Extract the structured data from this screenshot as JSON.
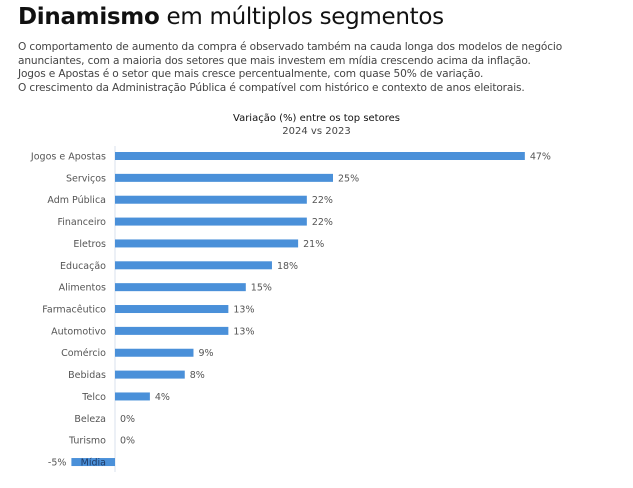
{
  "header": {
    "title_bold": "Dinamismo",
    "title_rest": " em múltiplos segmentos"
  },
  "description": [
    "O comportamento de aumento da compra é observado também na cauda longa dos modelos de negócio",
    "anunciantes, com a maioria dos setores que mais investem em mídia crescendo acima da inflação.",
    "Jogos e Apostas é o setor que mais cresce percentualmente, com quase 50% de variação.",
    "O crescimento da Administração Pública é compatível com histórico e contexto de anos eleitorais."
  ],
  "chart_data": {
    "type": "bar",
    "orientation": "horizontal",
    "title": "Variação (%) entre os top setores",
    "subtitle": "2024 vs 2023",
    "categories": [
      "Jogos e Apostas",
      "Serviços",
      "Adm Pública",
      "Financeiro",
      "Eletros",
      "Educação",
      "Alimentos",
      "Farmacêutico",
      "Automotivo",
      "Comércio",
      "Bebidas",
      "Telco",
      "Beleza",
      "Turismo",
      "Mídia"
    ],
    "values": [
      47,
      25,
      22,
      22,
      21,
      18,
      15,
      13,
      13,
      9,
      8,
      4,
      0,
      0,
      -5
    ],
    "labels": [
      "47%",
      "25%",
      "22%",
      "22%",
      "21%",
      "18%",
      "15%",
      "13%",
      "13%",
      "9%",
      "8%",
      "4%",
      "0%",
      "0%",
      "-5%"
    ],
    "bar_color": "#4a90d9",
    "xlabel": "",
    "ylabel": ""
  }
}
